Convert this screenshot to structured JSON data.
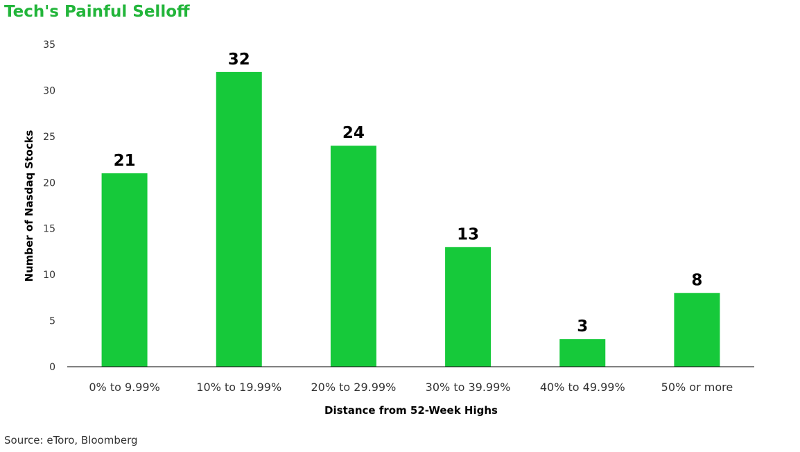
{
  "chart_data": {
    "type": "bar",
    "title": "Tech's Painful Selloff",
    "xlabel": "Distance from 52-Week Highs",
    "ylabel": "Number of Nasdaq Stocks",
    "categories": [
      "0% to 9.99%",
      "10% to 19.99%",
      "20% to 29.99%",
      "30% to 39.99%",
      "40% to 49.99%",
      "50% or more"
    ],
    "values": [
      21,
      32,
      24,
      13,
      3,
      8
    ],
    "ylim": [
      0,
      35
    ],
    "yticks": [
      0,
      5,
      10,
      15,
      20,
      25,
      30,
      35
    ],
    "grid": false,
    "legend": "none",
    "bar_color": "#16c93a",
    "title_color": "#22b53a"
  },
  "source": "Source: eToro, Bloomberg"
}
